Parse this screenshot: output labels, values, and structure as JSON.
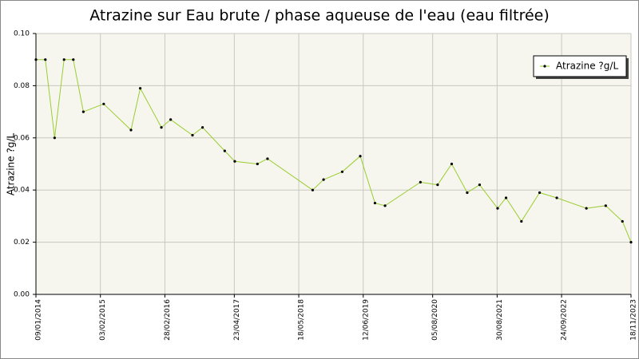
{
  "chart_data": {
    "type": "line",
    "title": "Atrazine sur Eau brute / phase aqueuse de l'eau (eau filtrée)",
    "y_label": "Atrazine ?g/L",
    "x": [
      "09/01/2014",
      "07/03/2014",
      "02/05/2014",
      "28/06/2014",
      "23/08/2014",
      "23/10/2014",
      "23/02/2015",
      "07/08/2015",
      "02/10/2015",
      "07/02/2016",
      "03/04/2016",
      "13/08/2016",
      "13/10/2016",
      "24/02/2017",
      "26/04/2017",
      "10/09/2017",
      "10/11/2017",
      "10/08/2018",
      "15/10/2018",
      "05/02/2019",
      "25/05/2019",
      "22/08/2019",
      "22/10/2019",
      "23/05/2020",
      "04/09/2020",
      "28/11/2020",
      "02/03/2021",
      "16/05/2021",
      "02/09/2021",
      "23/10/2021",
      "24/01/2022",
      "14/05/2022",
      "26/08/2022",
      "21/02/2023",
      "18/06/2023",
      "27/09/2023",
      "18/11/2023"
    ],
    "series": [
      {
        "name": "Atrazine ?g/L",
        "color": "#9acd32",
        "values": [
          0.09,
          0.09,
          0.06,
          0.09,
          0.09,
          0.07,
          0.073,
          0.063,
          0.079,
          0.064,
          0.067,
          0.061,
          0.064,
          0.055,
          0.051,
          0.05,
          0.052,
          0.04,
          0.044,
          0.047,
          0.053,
          0.035,
          0.034,
          0.043,
          0.042,
          0.05,
          0.039,
          0.042,
          0.033,
          0.037,
          0.028,
          0.039,
          0.037,
          0.033,
          0.034,
          0.028,
          0.02
        ]
      }
    ],
    "xlim": [
      "09/01/2014",
      "18/11/2023"
    ],
    "xticks": [
      "09/01/2014",
      "03/02/2015",
      "28/02/2016",
      "23/04/2017",
      "18/05/2018",
      "12/06/2019",
      "05/08/2020",
      "30/08/2021",
      "24/09/2022",
      "18/11/2023"
    ],
    "ylim": [
      0,
      0.1
    ],
    "yticks": [
      {
        "value": 0,
        "label": "0.00"
      },
      {
        "value": 0.02,
        "label": "0.02"
      },
      {
        "value": 0.04,
        "label": "0.04"
      },
      {
        "value": 0.06,
        "label": "0.06"
      },
      {
        "value": 0.08,
        "label": "0.08"
      },
      {
        "value": 0.1,
        "label": "0.10"
      }
    ],
    "grid": true,
    "legend": "top-right"
  }
}
